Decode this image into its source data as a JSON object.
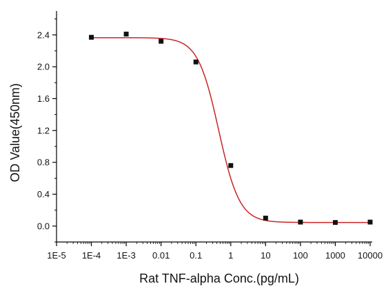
{
  "chart_data": {
    "type": "scatter",
    "title": "",
    "xlabel": "Rat TNF-alpha Conc.(pg/mL)",
    "ylabel": "OD Value(450nm)",
    "x_scale": "log",
    "xlim": [
      1e-05,
      10000
    ],
    "ylim": [
      -0.2,
      2.7
    ],
    "grid": false,
    "legend": "none",
    "x_ticks": [
      {
        "value": 1e-05,
        "label": "1E-5"
      },
      {
        "value": 0.0001,
        "label": "1E-4"
      },
      {
        "value": 0.001,
        "label": "1E-3"
      },
      {
        "value": 0.01,
        "label": "0.01"
      },
      {
        "value": 0.1,
        "label": "0.1"
      },
      {
        "value": 1,
        "label": "1"
      },
      {
        "value": 10,
        "label": "10"
      },
      {
        "value": 100,
        "label": "100"
      },
      {
        "value": 1000,
        "label": "1000"
      },
      {
        "value": 10000,
        "label": "10000"
      }
    ],
    "y_ticks": [
      {
        "value": 0.0,
        "label": "0.0"
      },
      {
        "value": 0.4,
        "label": "0.4"
      },
      {
        "value": 0.8,
        "label": "0.8"
      },
      {
        "value": 1.2,
        "label": "1.2"
      },
      {
        "value": 1.6,
        "label": "1.6"
      },
      {
        "value": 2.0,
        "label": "2.0"
      },
      {
        "value": 2.4,
        "label": "2.4"
      }
    ],
    "series": [
      {
        "x": [
          0.0001,
          0.001,
          0.01,
          0.1,
          1,
          10,
          100,
          1000,
          10000
        ],
        "y": [
          2.37,
          2.41,
          2.32,
          2.06,
          0.76,
          0.1,
          0.05,
          0.045,
          0.05
        ],
        "marker": "square",
        "color": "#111111"
      }
    ],
    "fit_curve": {
      "type": "4PL",
      "top": 2.365,
      "bottom": 0.045,
      "ec50": 0.45,
      "hill": 1.45,
      "color": "#cc2222"
    }
  }
}
